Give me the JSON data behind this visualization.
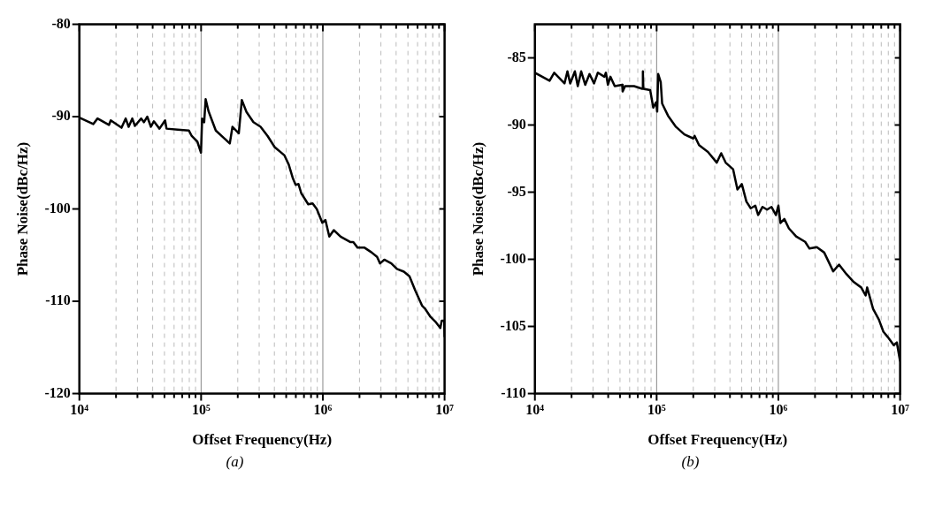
{
  "chart_data": [
    {
      "type": "line",
      "xlabel": "Offset Frequency(Hz)",
      "ylabel": "Phase Noise(dBc/Hz)",
      "annotations": [
        "(a)"
      ],
      "log": "x",
      "grid": "x",
      "marker": "none",
      "line_style": "solid",
      "xlim": [
        10000,
        10000000
      ],
      "ylim": [
        -120,
        -80
      ],
      "yticks": [
        -120,
        -110,
        -100,
        -90,
        -80
      ],
      "xticks": [
        {
          "value": 10000,
          "label": "10⁴"
        },
        {
          "value": 20000,
          "label": null
        },
        {
          "value": 30000,
          "label": null
        },
        {
          "value": 40000,
          "label": null
        },
        {
          "value": 50000,
          "label": null
        },
        {
          "value": 60000,
          "label": null
        },
        {
          "value": 70000,
          "label": null
        },
        {
          "value": 80000,
          "label": null
        },
        {
          "value": 90000,
          "label": null
        },
        {
          "value": 100000,
          "label": "10⁵"
        },
        {
          "value": 200000,
          "label": null
        },
        {
          "value": 300000,
          "label": null
        },
        {
          "value": 400000,
          "label": null
        },
        {
          "value": 500000,
          "label": null
        },
        {
          "value": 600000,
          "label": null
        },
        {
          "value": 700000,
          "label": null
        },
        {
          "value": 800000,
          "label": null
        },
        {
          "value": 900000,
          "label": null
        },
        {
          "value": 1000000,
          "label": "10⁶"
        },
        {
          "value": 2000000,
          "label": null
        },
        {
          "value": 3000000,
          "label": null
        },
        {
          "value": 4000000,
          "label": null
        },
        {
          "value": 5000000,
          "label": null
        },
        {
          "value": 6000000,
          "label": null
        },
        {
          "value": 7000000,
          "label": null
        },
        {
          "value": 8000000,
          "label": null
        },
        {
          "value": 9000000,
          "label": null
        },
        {
          "value": 10000000,
          "label": "10⁷"
        }
      ],
      "series": [
        {
          "color": "#000000",
          "x": [
            10000,
            13000,
            14100,
            17500,
            18100,
            22200,
            24000,
            25400,
            27200,
            28600,
            32200,
            33900,
            36100,
            38700,
            40900,
            45500,
            50600,
            52000,
            64300,
            79400,
            83800,
            93100,
            99800,
            102000,
            106000,
            109000,
            115000,
            132000,
            172000,
            181000,
            204000,
            216000,
            236000,
            269000,
            308000,
            352000,
            402000,
            484000,
            525000,
            568000,
            598000,
            631000,
            665000,
            759000,
            824000,
            891000,
            991000,
            1050000,
            1130000,
            1230000,
            1400000,
            1690000,
            1780000,
            1930000,
            2200000,
            2510000,
            2790000,
            2950000,
            3200000,
            3650000,
            4060000,
            4630000,
            5150000,
            5730000,
            6550000,
            6900000,
            7670000,
            8510000,
            9230000,
            9480000,
            9930000,
            10000000
          ],
          "values": [
            -90.1,
            -90.8,
            -90.2,
            -90.9,
            -90.4,
            -91.2,
            -90.2,
            -91.1,
            -90.2,
            -91,
            -90.2,
            -90.6,
            -90,
            -91.1,
            -90.5,
            -91.3,
            -90.4,
            -91.3,
            -91.4,
            -91.5,
            -92.1,
            -92.7,
            -93.9,
            -90.2,
            -90.6,
            -88.1,
            -89.4,
            -91.5,
            -92.9,
            -91.1,
            -91.8,
            -88.2,
            -89.5,
            -90.6,
            -91.1,
            -92.1,
            -93.3,
            -94.2,
            -95.2,
            -96.7,
            -97.4,
            -97.3,
            -98.3,
            -99.5,
            -99.4,
            -100,
            -101.5,
            -101.2,
            -103,
            -102.3,
            -103,
            -103.6,
            -103.6,
            -104.2,
            -104.2,
            -104.7,
            -105.2,
            -105.9,
            -105.5,
            -105.9,
            -106.5,
            -106.8,
            -107.3,
            -108.8,
            -110.5,
            -110.8,
            -111.7,
            -112.3,
            -112.9,
            -112.1,
            -112.1,
            -113.8
          ]
        }
      ]
    },
    {
      "type": "line",
      "xlabel": "Offset Frequency(Hz)",
      "ylabel": "Phase Noise(dBc/Hz)",
      "annotations": [
        "(b)"
      ],
      "log": "x",
      "grid": "x",
      "marker": "none",
      "line_style": "solid",
      "xlim": [
        10000,
        10000000
      ],
      "ylim": [
        -110,
        -82.5
      ],
      "yticks": [
        -110,
        -105,
        -100,
        -95,
        -90,
        -85
      ],
      "xticks": [
        {
          "value": 10000,
          "label": "10⁴"
        },
        {
          "value": 20000,
          "label": null
        },
        {
          "value": 30000,
          "label": null
        },
        {
          "value": 40000,
          "label": null
        },
        {
          "value": 50000,
          "label": null
        },
        {
          "value": 60000,
          "label": null
        },
        {
          "value": 70000,
          "label": null
        },
        {
          "value": 80000,
          "label": null
        },
        {
          "value": 90000,
          "label": null
        },
        {
          "value": 100000,
          "label": "10⁵"
        },
        {
          "value": 200000,
          "label": null
        },
        {
          "value": 300000,
          "label": null
        },
        {
          "value": 400000,
          "label": null
        },
        {
          "value": 500000,
          "label": null
        },
        {
          "value": 600000,
          "label": null
        },
        {
          "value": 700000,
          "label": null
        },
        {
          "value": 800000,
          "label": null
        },
        {
          "value": 900000,
          "label": null
        },
        {
          "value": 1000000,
          "label": "10⁶"
        },
        {
          "value": 2000000,
          "label": null
        },
        {
          "value": 3000000,
          "label": null
        },
        {
          "value": 4000000,
          "label": null
        },
        {
          "value": 5000000,
          "label": null
        },
        {
          "value": 6000000,
          "label": null
        },
        {
          "value": 7000000,
          "label": null
        },
        {
          "value": 8000000,
          "label": null
        },
        {
          "value": 9000000,
          "label": null
        },
        {
          "value": 10000000,
          "label": "10⁷"
        }
      ],
      "series": [
        {
          "color": "#000000",
          "x": [
            10000,
            13200,
            14400,
            17500,
            18500,
            19500,
            21300,
            22500,
            24000,
            25900,
            28100,
            30600,
            32900,
            37200,
            38300,
            39800,
            41700,
            45300,
            52100,
            52600,
            55100,
            65200,
            76200,
            77100,
            77800,
            88500,
            93800,
            99100,
            101000,
            103000,
            108000,
            111000,
            124000,
            143000,
            169000,
            200000,
            205000,
            223000,
            264000,
            312000,
            339000,
            369000,
            425000,
            461000,
            501000,
            546000,
            593000,
            646000,
            682000,
            741000,
            807000,
            877000,
            955000,
            1000000,
            1040000,
            1120000,
            1220000,
            1400000,
            1660000,
            1800000,
            2070000,
            2380000,
            2820000,
            3150000,
            3620000,
            4170000,
            4790000,
            5210000,
            5360000,
            6000000,
            6700000,
            7290000,
            7930000,
            8870000,
            9400000,
            10000000
          ],
          "values": [
            -86.1,
            -86.7,
            -86.1,
            -86.9,
            -86,
            -86.9,
            -86,
            -87.1,
            -86,
            -87,
            -86.2,
            -86.9,
            -86.1,
            -86.4,
            -86.1,
            -87,
            -86.4,
            -87.1,
            -87,
            -87.5,
            -87.1,
            -87.1,
            -87.3,
            -86,
            -87.3,
            -87.4,
            -88.7,
            -88.3,
            -89,
            -86.2,
            -86.8,
            -88.4,
            -89.3,
            -90.1,
            -90.7,
            -91,
            -90.8,
            -91.5,
            -92,
            -92.8,
            -92.1,
            -92.8,
            -93.3,
            -94.8,
            -94.4,
            -95.7,
            -96.2,
            -96,
            -96.7,
            -96.1,
            -96.3,
            -96.1,
            -96.7,
            -96,
            -97.3,
            -97,
            -97.7,
            -98.3,
            -98.7,
            -99.2,
            -99.1,
            -99.5,
            -100.9,
            -100.4,
            -101.1,
            -101.7,
            -102.1,
            -102.7,
            -102.1,
            -103.7,
            -104.5,
            -105.4,
            -105.8,
            -106.4,
            -106.2,
            -107.6
          ]
        }
      ]
    }
  ]
}
